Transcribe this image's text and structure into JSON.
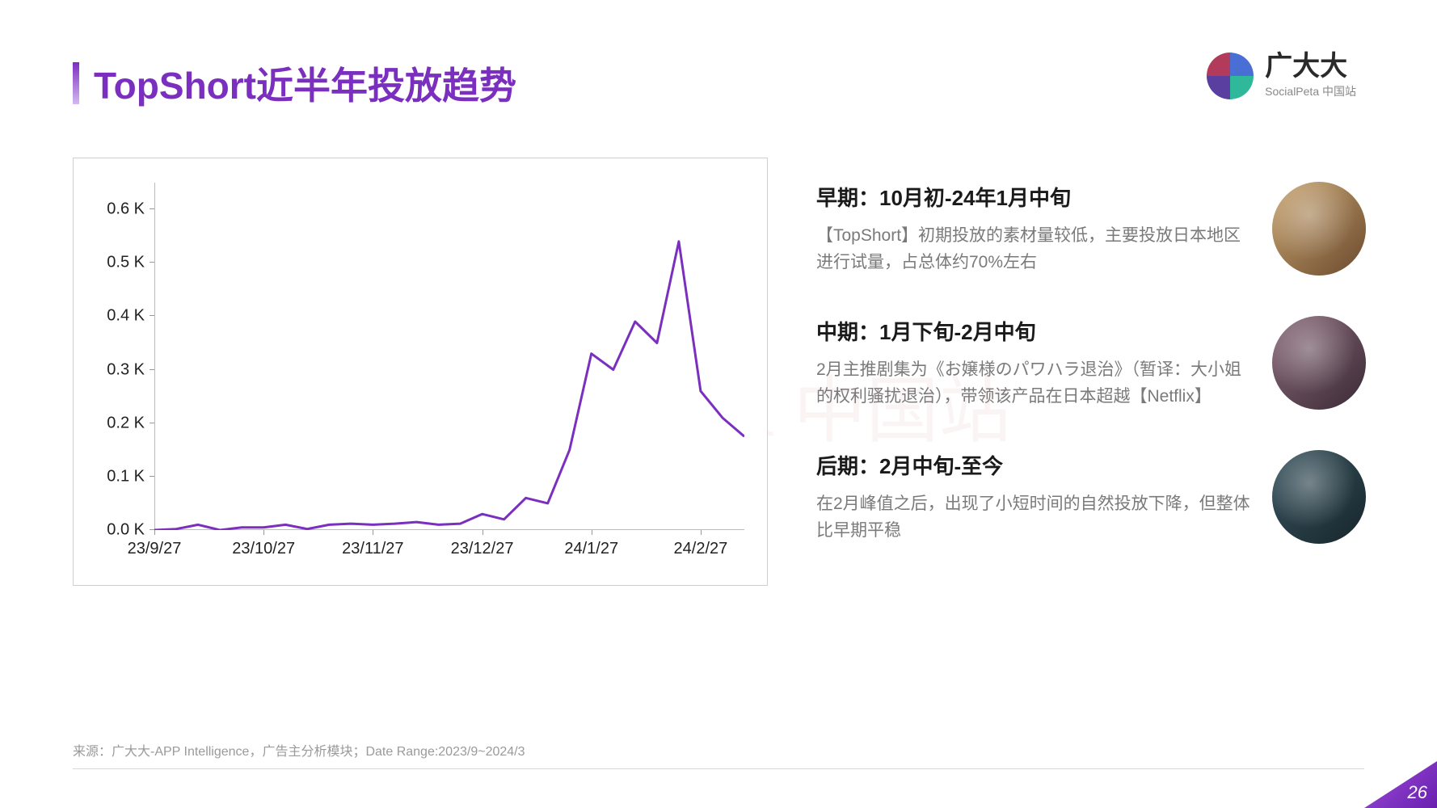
{
  "title": "TopShort近半年投放趋势",
  "title_color": "#7b2fbf",
  "accent_gradient": [
    "#7b2fbf",
    "#d4b8f0"
  ],
  "logo": {
    "name": "广大大",
    "sub": "SocialPeta 中国站",
    "quadrant_colors": [
      "#b23a5a",
      "#4a6fd4",
      "#5a3fa0",
      "#2fb89a"
    ]
  },
  "chart": {
    "type": "line",
    "line_color": "#7b2fbf",
    "line_width": 3,
    "border_color": "#cfcfcf",
    "background_color": "#ffffff",
    "y_label_suffix": " K",
    "ylim": [
      0.0,
      0.65
    ],
    "yticks": [
      0.0,
      0.1,
      0.2,
      0.3,
      0.4,
      0.5,
      0.6
    ],
    "ytick_labels": [
      "0.0 K",
      "0.1 K",
      "0.2 K",
      "0.3 K",
      "0.4 K",
      "0.5 K",
      "0.6 K"
    ],
    "x_categories": [
      "23/9/27",
      "23/10/27",
      "23/11/27",
      "23/12/27",
      "24/1/27",
      "24/2/27"
    ],
    "x_positions": [
      0,
      5,
      10,
      15,
      20,
      25
    ],
    "tick_fontsize": 20,
    "series": {
      "x": [
        0,
        1,
        2,
        3,
        4,
        5,
        6,
        7,
        8,
        9,
        10,
        11,
        12,
        13,
        14,
        15,
        16,
        17,
        18,
        19,
        20,
        21,
        22,
        23,
        24,
        25,
        26,
        27
      ],
      "y": [
        0.0,
        0.002,
        0.01,
        0.0,
        0.005,
        0.005,
        0.01,
        0.002,
        0.01,
        0.012,
        0.01,
        0.012,
        0.015,
        0.01,
        0.012,
        0.03,
        0.02,
        0.06,
        0.05,
        0.15,
        0.33,
        0.3,
        0.39,
        0.35,
        0.54,
        0.26,
        0.21,
        0.175
      ]
    }
  },
  "sections": [
    {
      "title": "早期：10月初-24年1月中旬",
      "desc": "【TopShort】初期投放的素材量较低，主要投放日本地区进行试量，占总体约70%左右",
      "img_bg": "linear-gradient(135deg,#c9a570 0%, #6b4a2e 100%)"
    },
    {
      "title": "中期：1月下旬-2月中旬",
      "desc": "2月主推剧集为《お嬢様のパワハラ退治》（暂译：大小姐的权利骚扰退治），带领该产品在日本超越【Netflix】",
      "img_bg": "linear-gradient(135deg,#8a6a7a 0%, #3a2a35 100%)"
    },
    {
      "title": "后期：2月中旬-至今",
      "desc": "在2月峰值之后，出现了小短时间的自然投放下降，但整体比早期平稳",
      "img_bg": "linear-gradient(135deg,#3a5560 0%, #16252b 100%)"
    }
  ],
  "footer_source": "来源：广大大-APP Intelligence，广告主分析模块；Date Range:2023/9~2024/3",
  "page_number": "26",
  "watermark_text": "SocialPeta 中国站"
}
